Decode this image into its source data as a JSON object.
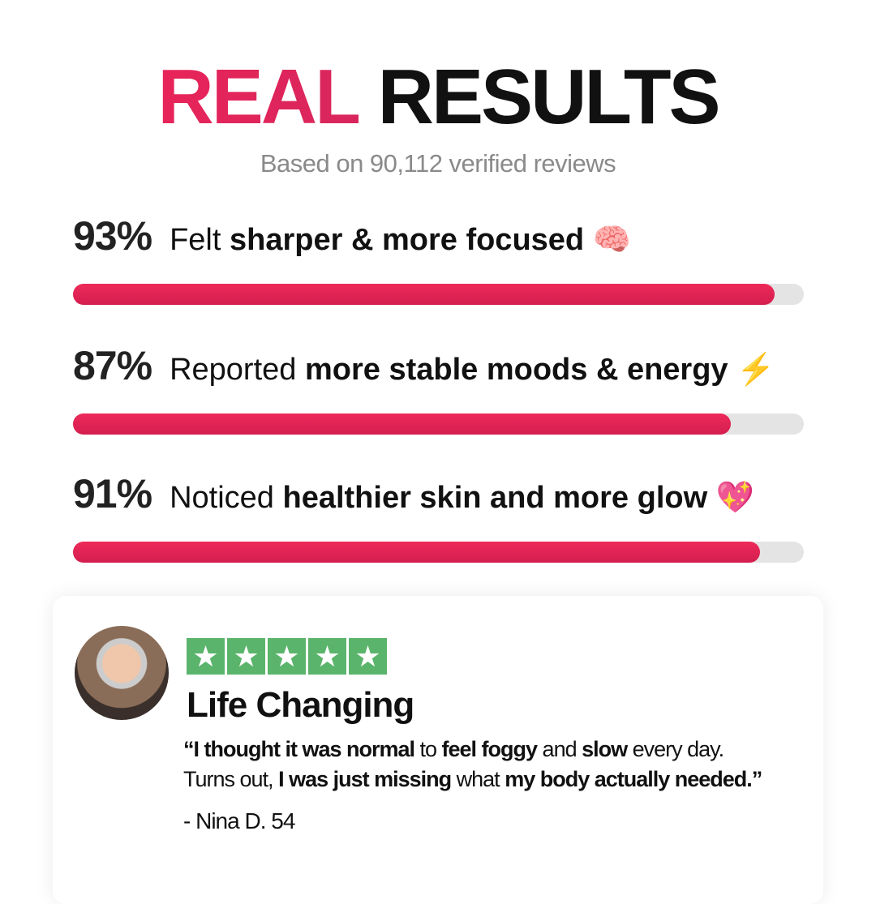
{
  "title": {
    "accent": "REAL",
    "rest": "RESULTS"
  },
  "subtitle": "Based on 90,112 verified reviews",
  "accent_color": "#e8245a",
  "stats": [
    {
      "percent": "93%",
      "value": 93,
      "lead": "Felt",
      "bold": "sharper & more focused",
      "emoji": "🧠"
    },
    {
      "percent": "87%",
      "value": 87,
      "lead": "Reported",
      "bold": "more stable moods & energy",
      "emoji": "⚡"
    },
    {
      "percent": "91%",
      "value": 91,
      "lead": "Noticed",
      "bold": "healthier skin and more glow",
      "emoji": "💖"
    }
  ],
  "review": {
    "rating": 5,
    "star_color": "#5bb46c",
    "heading": "Life Changing",
    "q": [
      "“I thought it was normal",
      " to ",
      "feel foggy",
      " and ",
      "slow",
      " every day.",
      "Turns out, ",
      "I was just missing",
      " what ",
      "my body actually needed.”"
    ],
    "author": "- Nina D. 54"
  }
}
